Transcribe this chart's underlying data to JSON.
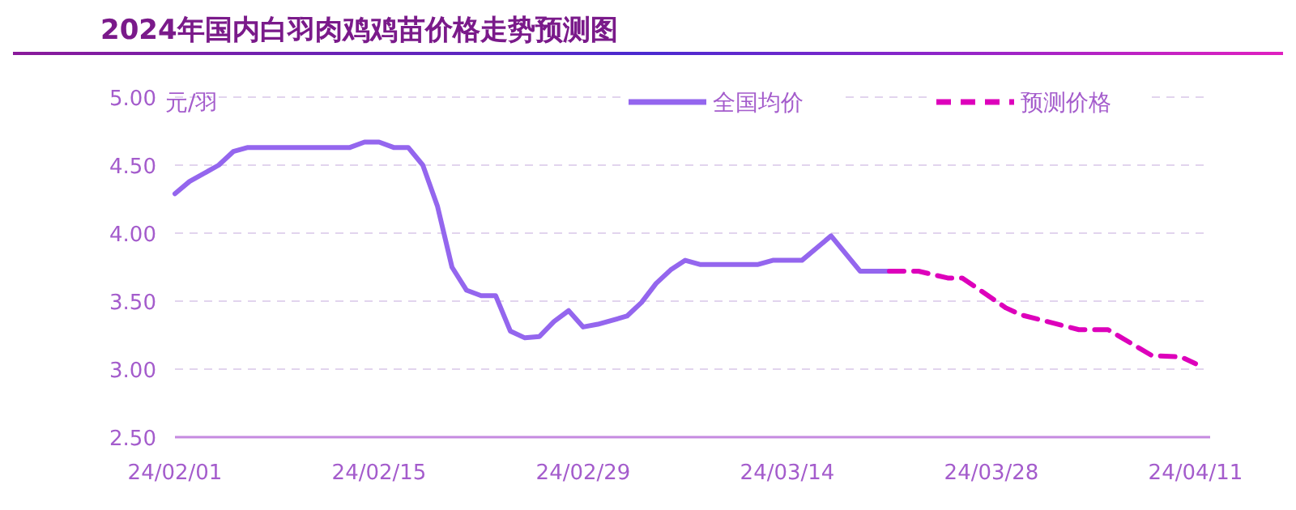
{
  "chart_data": {
    "type": "line",
    "title": "2024年国内白羽肉鸡鸡苗价格走势预测图",
    "ylabel": "元/羽",
    "xlim": [
      "2024-02-01",
      "2024-04-12"
    ],
    "xticks": [
      {
        "value": "2024-02-01",
        "label": "24/02/01"
      },
      {
        "value": "2024-02-15",
        "label": "24/02/15"
      },
      {
        "value": "2024-02-29",
        "label": "24/02/29"
      },
      {
        "value": "2024-03-14",
        "label": "24/03/14"
      },
      {
        "value": "2024-03-28",
        "label": "24/03/28"
      },
      {
        "value": "2024-04-11",
        "label": "24/04/11"
      }
    ],
    "ylim": [
      2.5,
      5.0
    ],
    "yticks": [
      {
        "value": 2.5,
        "label": "2.50"
      },
      {
        "value": 3,
        "label": "3.00"
      },
      {
        "value": 3.5,
        "label": "3.50"
      },
      {
        "value": 4,
        "label": "4.00"
      },
      {
        "value": 4.5,
        "label": "4.50"
      },
      {
        "value": 5,
        "label": "5.00"
      }
    ],
    "grid": "y",
    "legend": "top right",
    "marker": "none",
    "series": [
      {
        "name": "全国均价",
        "color": "#9466ee",
        "line_style": "solid",
        "x": [
          "2024-02-01",
          "2024-02-02",
          "2024-02-04",
          "2024-02-05",
          "2024-02-06",
          "2024-02-13",
          "2024-02-14",
          "2024-02-15",
          "2024-02-16",
          "2024-02-17",
          "2024-02-18",
          "2024-02-19",
          "2024-02-20",
          "2024-02-21",
          "2024-02-22",
          "2024-02-23",
          "2024-02-24",
          "2024-02-25",
          "2024-02-26",
          "2024-02-27",
          "2024-02-28",
          "2024-02-29",
          "2024-03-01",
          "2024-03-03",
          "2024-03-04",
          "2024-03-05",
          "2024-03-06",
          "2024-03-07",
          "2024-03-08",
          "2024-03-12",
          "2024-03-13",
          "2024-03-15",
          "2024-03-17",
          "2024-03-19",
          "2024-03-21"
        ],
        "values": [
          4.29,
          4.38,
          4.5,
          4.6,
          4.63,
          4.63,
          4.67,
          4.67,
          4.63,
          4.63,
          4.5,
          4.2,
          3.75,
          3.58,
          3.54,
          3.54,
          3.28,
          3.23,
          3.24,
          3.35,
          3.43,
          3.31,
          3.33,
          3.39,
          3.49,
          3.63,
          3.73,
          3.8,
          3.77,
          3.77,
          3.8,
          3.8,
          3.98,
          3.72,
          3.72
        ]
      },
      {
        "name": "预测价格",
        "color": "#dd00bb",
        "line_style": "dashed",
        "x": [
          "2024-03-21",
          "2024-03-23",
          "2024-03-25",
          "2024-03-26",
          "2024-03-29",
          "2024-03-30",
          "2024-04-03",
          "2024-04-05",
          "2024-04-08",
          "2024-04-10",
          "2024-04-11"
        ],
        "values": [
          3.72,
          3.72,
          3.67,
          3.67,
          3.45,
          3.4,
          3.29,
          3.29,
          3.1,
          3.09,
          3.04
        ]
      }
    ]
  }
}
